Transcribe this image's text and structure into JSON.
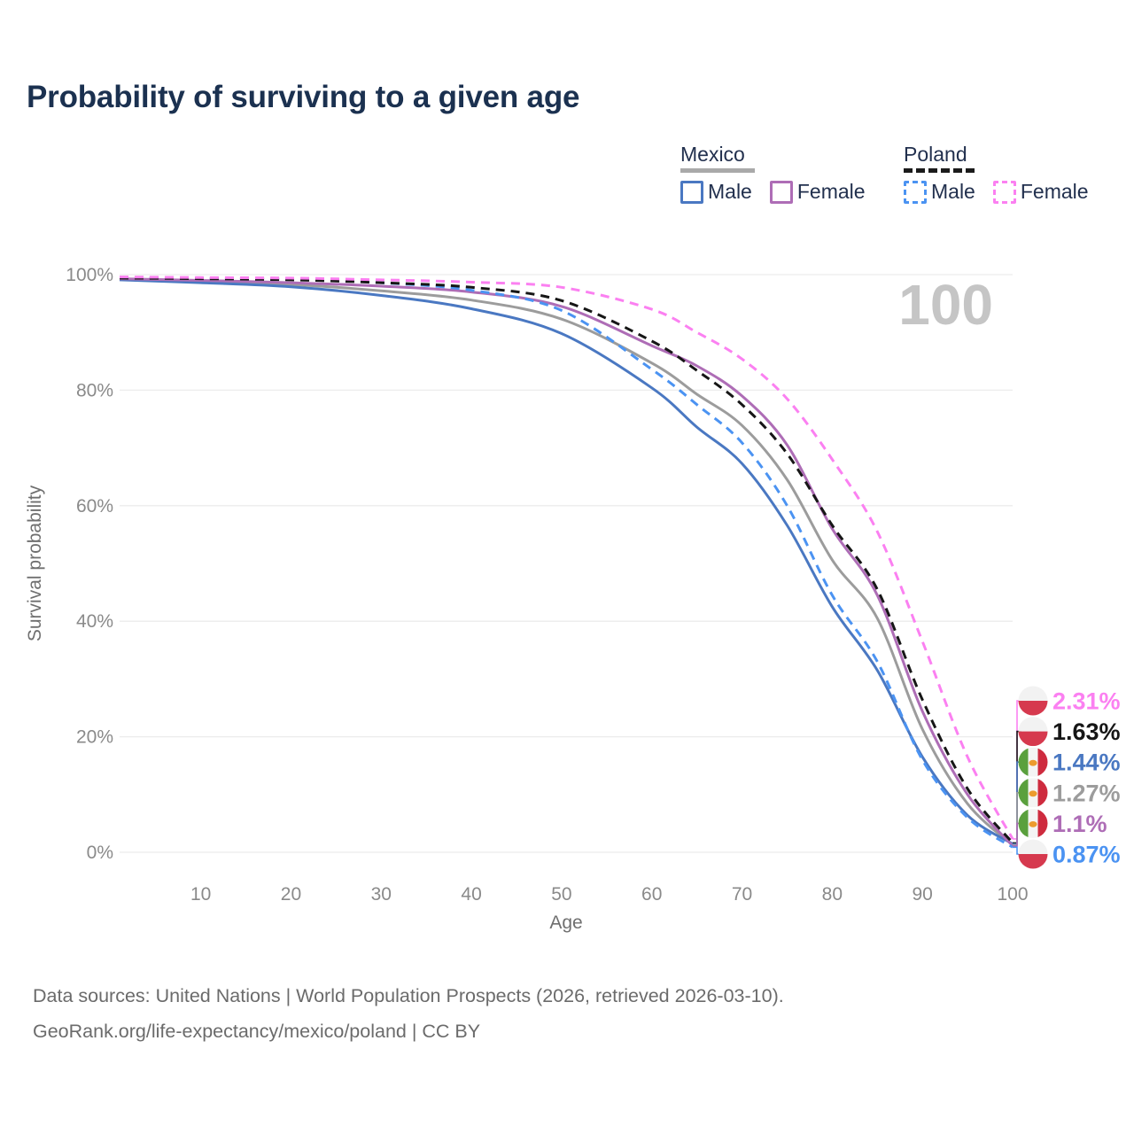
{
  "title": "Probability of surviving to a given age",
  "legend": {
    "mexico": {
      "label": "Mexico",
      "male_label": "Male",
      "female_label": "Female"
    },
    "poland": {
      "label": "Poland",
      "male_label": "Male",
      "female_label": "Female"
    }
  },
  "watermark": "100",
  "footer": {
    "line1": "Data sources: United Nations | World Population Prospects (2026, retrieved 2026-03-10).",
    "line2": "GeoRank.org/life-expectancy/mexico/poland | CC BY"
  },
  "chart_data": {
    "type": "line",
    "title": "Probability of surviving to a given age",
    "xlabel": "Age",
    "ylabel": "Survival probability",
    "xlim": [
      1,
      100
    ],
    "ylim": [
      0,
      100
    ],
    "x_ticks": [
      10,
      20,
      30,
      40,
      50,
      60,
      70,
      80,
      90,
      100
    ],
    "y_ticks": [
      0,
      20,
      40,
      60,
      80,
      100
    ],
    "y_tick_suffix": "%",
    "grid": "horizontal",
    "legend_position": "top-right",
    "watermark": "100",
    "ages": [
      1,
      10,
      20,
      30,
      40,
      50,
      60,
      65,
      70,
      75,
      80,
      85,
      90,
      95,
      100
    ],
    "series": [
      {
        "name": "Mexico",
        "country": "Mexico",
        "sex": "Both",
        "line": "solid",
        "color": "#9c9c9c",
        "flag": "mexico",
        "end_label": "1.27%",
        "values": [
          99.2,
          98.8,
          98.3,
          97.2,
          95.6,
          92.3,
          84.7,
          79.3,
          73.9,
          64.5,
          50.6,
          40.5,
          21.3,
          8.4,
          1.27
        ]
      },
      {
        "name": "Mexico Male",
        "country": "Mexico",
        "sex": "Male",
        "line": "solid",
        "color": "#4a78c2",
        "flag": "mexico",
        "end_label": "1.44%",
        "values": [
          99.1,
          98.6,
          97.9,
          96.4,
          94.1,
          89.8,
          80.4,
          73.6,
          67.3,
          56.6,
          42.5,
          31.5,
          16.5,
          6.4,
          1.44
        ]
      },
      {
        "name": "Mexico Female",
        "country": "Mexico",
        "sex": "Female",
        "line": "solid",
        "color": "#ae6db6",
        "flag": "mexico",
        "end_label": "1.1%",
        "values": [
          99.3,
          99.0,
          98.6,
          98.0,
          97.0,
          94.5,
          87.7,
          84.2,
          79.0,
          70.5,
          56.0,
          44.5,
          24.4,
          10.0,
          1.1
        ]
      },
      {
        "name": "Poland Male",
        "country": "Poland",
        "sex": "Male",
        "line": "dashed",
        "color": "#4b93f2",
        "flag": "poland",
        "end_label": "0.87%",
        "values": [
          99.5,
          99.4,
          99.2,
          98.6,
          97.3,
          93.8,
          83.6,
          77.5,
          70.9,
          60.0,
          44.5,
          33.0,
          16.0,
          6.0,
          0.87
        ]
      },
      {
        "name": "Poland",
        "country": "Poland",
        "sex": "Both",
        "line": "dashed",
        "color": "#161616",
        "flag": "poland",
        "end_label": "1.63%",
        "values": [
          99.4,
          99.3,
          99.1,
          98.6,
          97.8,
          95.5,
          88.5,
          83.4,
          77.5,
          69.0,
          56.6,
          45.5,
          26.4,
          11.0,
          1.63
        ]
      },
      {
        "name": "Poland Female",
        "country": "Poland",
        "sex": "Female",
        "line": "dashed",
        "color": "#fb80f1",
        "flag": "poland",
        "end_label": "2.31%",
        "values": [
          99.6,
          99.5,
          99.4,
          99.1,
          98.7,
          97.8,
          94.0,
          90.0,
          85.4,
          78.5,
          68.0,
          55.5,
          36.5,
          16.5,
          2.31
        ]
      }
    ],
    "colors": {
      "grid": "#ececec",
      "tick_text": "#8a8a8a",
      "axis_title": "#6f6f6f",
      "watermark": "#c5c5c5",
      "flag_poland_white": "#f2f2f2",
      "flag_poland_red": "#d6394e",
      "flag_mexico_green": "#5aa03d",
      "flag_mexico_white": "#f4f4f4",
      "flag_mexico_red": "#ce2b3e",
      "flag_mexico_eagle": "#ec9b2e"
    }
  }
}
